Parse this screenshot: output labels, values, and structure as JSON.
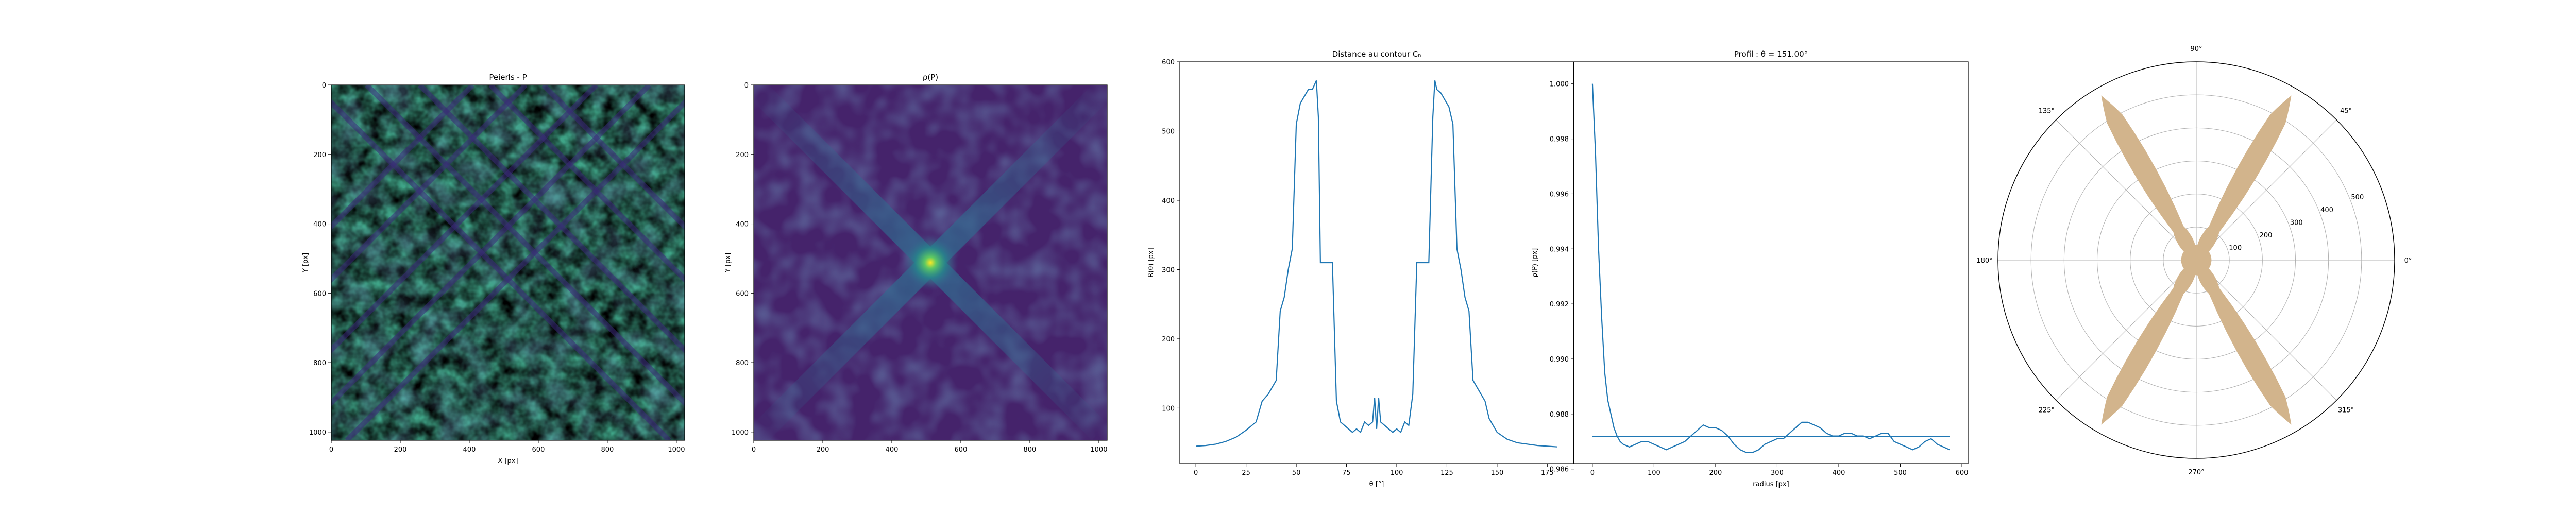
{
  "colors": {
    "line": "#1f77b4",
    "polar_fill": "#d2b48c",
    "grid": "#b0b0b0",
    "viridis_dark": "#440154",
    "viridis_mid": "#21918c",
    "viridis_bright": "#fde725"
  },
  "chart_data": [
    {
      "type": "heatmap",
      "title": "Peierls - P",
      "xlabel": "X [px]",
      "ylabel": "Y [px]",
      "xlim": [
        0,
        1024
      ],
      "ylim": [
        1024,
        0
      ],
      "xticks": [
        0,
        200,
        400,
        600,
        800,
        1000
      ],
      "yticks": [
        0,
        200,
        400,
        600,
        800,
        1000
      ],
      "colormap": "viridis",
      "stripes": [
        {
          "angle_deg": 45,
          "description": "dark diagonal stripes"
        },
        {
          "angle_deg": 135,
          "description": "dark diagonal stripes"
        }
      ]
    },
    {
      "type": "heatmap",
      "title": "ρ(P)",
      "xlabel": "",
      "ylabel": "Y [px]",
      "xlim": [
        0,
        1024
      ],
      "ylim": [
        1024,
        0
      ],
      "xticks": [
        0,
        200,
        400,
        600,
        800,
        1000
      ],
      "yticks": [
        0,
        200,
        400,
        600,
        800,
        1000
      ],
      "colormap": "viridis",
      "peak": {
        "x": 512,
        "y": 512
      }
    },
    {
      "type": "line",
      "title": "Distance au contour Cₙ",
      "xlabel": "θ [°]",
      "ylabel": "R(θ) [px]",
      "xlim": [
        -8,
        188
      ],
      "ylim": [
        20,
        600
      ],
      "xticks": [
        0,
        25,
        50,
        75,
        100,
        125,
        150,
        175
      ],
      "yticks": [
        100,
        200,
        300,
        400,
        500,
        600
      ],
      "x": [
        0,
        5,
        10,
        15,
        20,
        25,
        30,
        33,
        36,
        38,
        40,
        42,
        44,
        46,
        48,
        50,
        52,
        54,
        56,
        58,
        60,
        61,
        62,
        64,
        66,
        68,
        70,
        72,
        74,
        76,
        78,
        80,
        82,
        84,
        86,
        88,
        89,
        90,
        91,
        92,
        94,
        96,
        98,
        100,
        102,
        104,
        106,
        108,
        110,
        112,
        114,
        116,
        118,
        119,
        120,
        122,
        124,
        126,
        128,
        130,
        132,
        134,
        136,
        138,
        140,
        142,
        144,
        146,
        150,
        155,
        160,
        165,
        170,
        175,
        180
      ],
      "values": [
        45,
        46,
        48,
        52,
        58,
        68,
        80,
        110,
        120,
        130,
        140,
        240,
        260,
        300,
        330,
        510,
        540,
        550,
        560,
        560,
        573,
        520,
        310,
        310,
        310,
        310,
        110,
        80,
        75,
        70,
        65,
        70,
        65,
        80,
        75,
        80,
        115,
        70,
        115,
        80,
        75,
        70,
        65,
        70,
        65,
        80,
        75,
        120,
        310,
        310,
        310,
        310,
        520,
        573,
        560,
        555,
        545,
        535,
        510,
        330,
        300,
        260,
        240,
        140,
        130,
        120,
        110,
        85,
        65,
        55,
        50,
        48,
        46,
        45,
        44
      ]
    },
    {
      "type": "line",
      "title": "Profil : θ = 151.00°",
      "xlabel": "radius [px]",
      "ylabel": "ρ(P) [px]",
      "xlim": [
        -30,
        610
      ],
      "ylim": [
        0.9862,
        1.0008
      ],
      "xticks": [
        0,
        100,
        200,
        300,
        400,
        500,
        600
      ],
      "yticks": [
        0.986,
        0.988,
        0.99,
        0.992,
        0.994,
        0.996,
        0.998,
        1.0
      ],
      "ytick_labels": [
        "0.986",
        "0.988",
        "0.990",
        "0.992",
        "0.994",
        "0.996",
        "0.998",
        "1.000"
      ],
      "x": [
        0,
        5,
        10,
        15,
        20,
        25,
        30,
        35,
        40,
        45,
        50,
        60,
        70,
        80,
        90,
        100,
        110,
        120,
        130,
        140,
        150,
        160,
        170,
        180,
        190,
        200,
        210,
        220,
        230,
        240,
        250,
        260,
        270,
        280,
        290,
        300,
        310,
        320,
        330,
        340,
        350,
        360,
        370,
        380,
        390,
        400,
        410,
        420,
        430,
        440,
        450,
        460,
        470,
        480,
        490,
        500,
        510,
        520,
        530,
        540,
        550,
        560,
        570,
        580
      ],
      "values": [
        1.0,
        0.9975,
        0.994,
        0.9915,
        0.9895,
        0.9885,
        0.988,
        0.9875,
        0.9872,
        0.987,
        0.9869,
        0.9868,
        0.9869,
        0.987,
        0.987,
        0.9869,
        0.9868,
        0.9867,
        0.9868,
        0.9869,
        0.987,
        0.9872,
        0.9874,
        0.9876,
        0.9875,
        0.9875,
        0.9874,
        0.9872,
        0.9869,
        0.9867,
        0.9866,
        0.9866,
        0.9867,
        0.9869,
        0.987,
        0.9871,
        0.9871,
        0.9873,
        0.9875,
        0.9877,
        0.9877,
        0.9876,
        0.9875,
        0.9873,
        0.9872,
        0.9872,
        0.9873,
        0.9873,
        0.9872,
        0.9872,
        0.9871,
        0.9872,
        0.9873,
        0.9873,
        0.987,
        0.9869,
        0.9868,
        0.9867,
        0.9868,
        0.987,
        0.9871,
        0.9869,
        0.9868,
        0.9867
      ],
      "hline": {
        "y": 0.98718,
        "x_range": [
          0,
          580
        ]
      }
    },
    {
      "type": "area",
      "projection": "polar",
      "title": "",
      "angle_ticks": [
        0,
        45,
        90,
        135,
        180,
        225,
        270,
        315
      ],
      "angle_tick_labels": [
        "0°",
        "45°",
        "90°",
        "135°",
        "180°",
        "225°",
        "270°",
        "315°"
      ],
      "radial_ticks": [
        100,
        200,
        300,
        400,
        500
      ],
      "radial_tick_labels": [
        "100",
        "200",
        "300",
        "400",
        "500"
      ],
      "rmax": 600,
      "lobes": [
        {
          "center_deg": 60,
          "r_peak": 573
        },
        {
          "center_deg": 120,
          "r_peak": 573
        },
        {
          "center_deg": 240,
          "r_peak": 573
        },
        {
          "center_deg": 300,
          "r_peak": 573
        }
      ],
      "r_base": 45
    }
  ]
}
